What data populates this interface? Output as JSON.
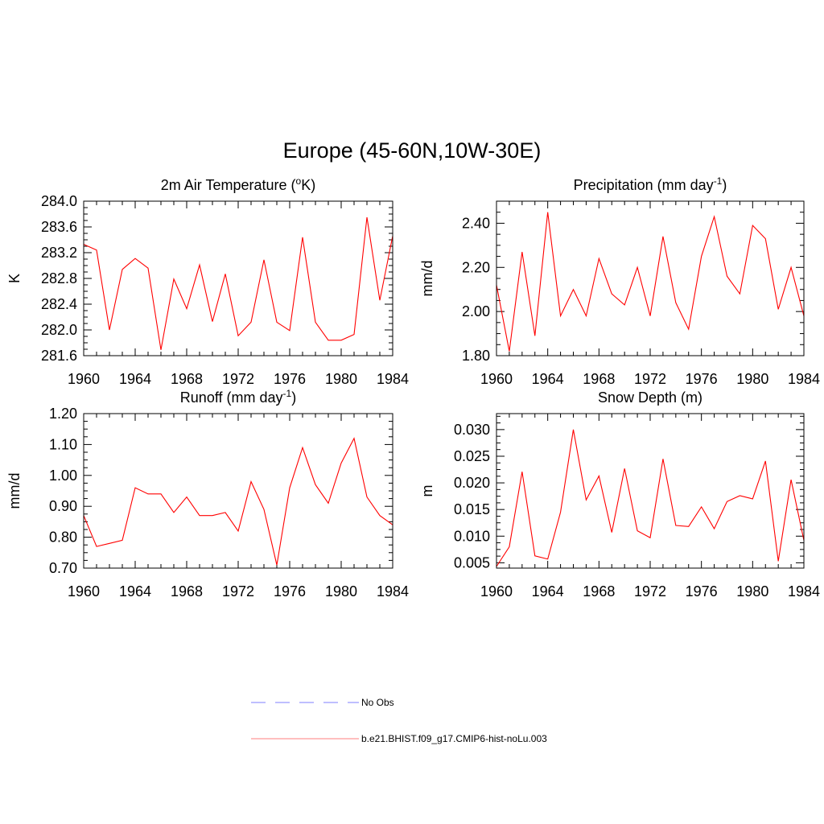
{
  "figure": {
    "title": "Europe (45-60N,10W-30E)"
  },
  "legend": {
    "placement": "bottom-center",
    "entries": [
      {
        "label": "No Obs",
        "color": "#9999ff",
        "style": "dashed"
      },
      {
        "label": "b.e21.BHIST.f09_g17.CMIP6-hist-noLu.003",
        "color": "#ff9999",
        "style": "solid"
      }
    ]
  },
  "chart_data": [
    {
      "type": "line",
      "title": "2m Air Temperature (",
      "title_sup": "o",
      "title_tail": "K)",
      "ylabel": "K",
      "xlim": [
        1960,
        1984
      ],
      "ylim": [
        281.6,
        284.0
      ],
      "xticks": [
        1960,
        1964,
        1968,
        1972,
        1976,
        1980,
        1984
      ],
      "yticks": [
        "281.6",
        "282.0",
        "282.4",
        "282.8",
        "283.2",
        "283.6",
        "284.0"
      ],
      "x": [
        1960,
        1961,
        1962,
        1963,
        1964,
        1965,
        1966,
        1967,
        1968,
        1969,
        1970,
        1971,
        1972,
        1973,
        1974,
        1975,
        1976,
        1977,
        1978,
        1979,
        1980,
        1981,
        1982,
        1983,
        1984
      ],
      "series": [
        {
          "color": "#ff0000",
          "values": [
            283.33,
            283.24,
            282.0,
            282.94,
            283.11,
            282.96,
            281.69,
            282.79,
            282.33,
            283.01,
            282.13,
            282.87,
            281.91,
            282.12,
            283.09,
            282.12,
            281.99,
            283.44,
            282.12,
            281.84,
            281.84,
            281.93,
            283.75,
            282.46,
            283.46
          ]
        }
      ]
    },
    {
      "type": "line",
      "title": "Precipitation (mm day",
      "title_sup": "-1",
      "title_tail": ")",
      "ylabel": "mm/d",
      "xlim": [
        1960,
        1984
      ],
      "ylim": [
        1.8,
        2.5
      ],
      "xticks": [
        1960,
        1964,
        1968,
        1972,
        1976,
        1980,
        1984
      ],
      "yticks": [
        "1.80",
        "2.00",
        "2.20",
        "2.40"
      ],
      "x": [
        1960,
        1961,
        1962,
        1963,
        1964,
        1965,
        1966,
        1967,
        1968,
        1969,
        1970,
        1971,
        1972,
        1973,
        1974,
        1975,
        1976,
        1977,
        1978,
        1979,
        1980,
        1981,
        1982,
        1983,
        1984
      ],
      "series": [
        {
          "color": "#ff0000",
          "values": [
            2.12,
            1.82,
            2.27,
            1.89,
            2.45,
            1.98,
            2.1,
            1.98,
            2.24,
            2.08,
            2.03,
            2.2,
            1.98,
            2.34,
            2.04,
            1.92,
            2.25,
            2.43,
            2.16,
            2.08,
            2.39,
            2.33,
            2.01,
            2.2,
            1.98
          ]
        }
      ]
    },
    {
      "type": "line",
      "title": "Runoff (mm day",
      "title_sup": "-1",
      "title_tail": ")",
      "ylabel": "mm/d",
      "xlim": [
        1960,
        1984
      ],
      "ylim": [
        0.7,
        1.2
      ],
      "xticks": [
        1960,
        1964,
        1968,
        1972,
        1976,
        1980,
        1984
      ],
      "yticks": [
        "0.70",
        "0.80",
        "0.90",
        "1.00",
        "1.10",
        "1.20"
      ],
      "x": [
        1960,
        1961,
        1962,
        1963,
        1964,
        1965,
        1966,
        1967,
        1968,
        1969,
        1970,
        1971,
        1972,
        1973,
        1974,
        1975,
        1976,
        1977,
        1978,
        1979,
        1980,
        1981,
        1982,
        1983,
        1984
      ],
      "series": [
        {
          "color": "#ff0000",
          "values": [
            0.87,
            0.77,
            0.78,
            0.79,
            0.96,
            0.94,
            0.94,
            0.88,
            0.93,
            0.87,
            0.87,
            0.88,
            0.82,
            0.98,
            0.89,
            0.71,
            0.96,
            1.09,
            0.97,
            0.91,
            1.04,
            1.12,
            0.93,
            0.87,
            0.84
          ]
        }
      ]
    },
    {
      "type": "line",
      "title": "Snow Depth (m)",
      "title_sup": "",
      "title_tail": "",
      "ylabel": "m",
      "xlim": [
        1960,
        1984
      ],
      "ylim": [
        0.004,
        0.033
      ],
      "xticks": [
        1960,
        1964,
        1968,
        1972,
        1976,
        1980,
        1984
      ],
      "yticks": [
        "0.005",
        "0.010",
        "0.015",
        "0.020",
        "0.025",
        "0.030"
      ],
      "x": [
        1960,
        1961,
        1962,
        1963,
        1964,
        1965,
        1966,
        1967,
        1968,
        1969,
        1970,
        1971,
        1972,
        1973,
        1974,
        1975,
        1976,
        1977,
        1978,
        1979,
        1980,
        1981,
        1982,
        1983,
        1984
      ],
      "series": [
        {
          "color": "#ff0000",
          "values": [
            0.0043,
            0.008,
            0.0221,
            0.0063,
            0.0057,
            0.0145,
            0.03,
            0.0168,
            0.0213,
            0.0107,
            0.0227,
            0.011,
            0.0097,
            0.0245,
            0.012,
            0.0118,
            0.0155,
            0.0114,
            0.0165,
            0.0176,
            0.017,
            0.0241,
            0.0053,
            0.0206,
            0.0092
          ]
        }
      ]
    }
  ]
}
